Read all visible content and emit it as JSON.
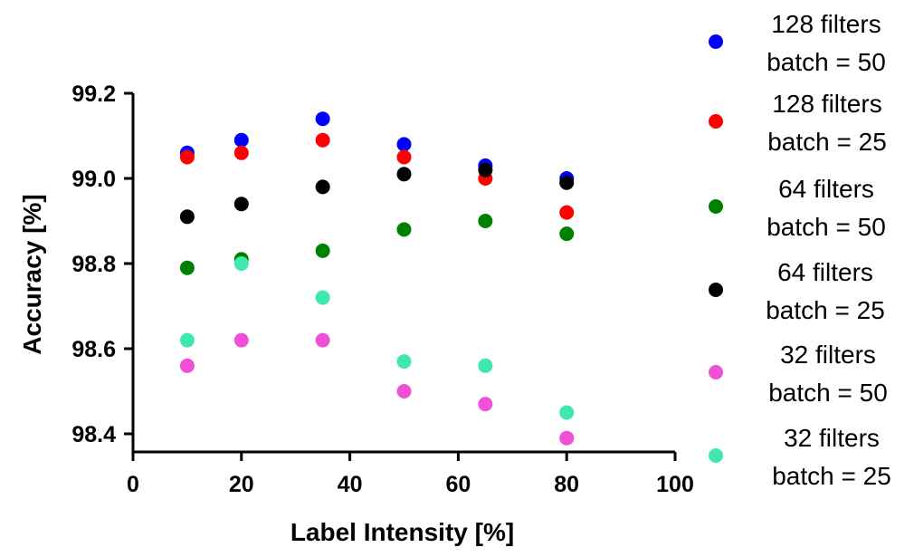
{
  "chart_data": {
    "type": "scatter",
    "title": "",
    "xlabel": "Label Intensity [%]",
    "ylabel": "Accuracy [%]",
    "xlim": [
      0,
      100
    ],
    "ylim": [
      98.35,
      99.2
    ],
    "xticks": [
      0,
      20,
      40,
      60,
      80,
      100
    ],
    "xtick_labels": [
      "0",
      "20",
      "40",
      "60",
      "80",
      "100"
    ],
    "yticks": [
      98.4,
      98.6,
      98.8,
      99.0,
      99.2
    ],
    "ytick_labels": [
      "98.4",
      "98.6",
      "98.8",
      "99.0",
      "99.2"
    ],
    "grid": false,
    "legend_position": "right",
    "x": [
      10,
      20,
      35,
      50,
      65,
      80
    ],
    "series": [
      {
        "name": "128 filters batch = 50",
        "legend_lines": [
          "128 filters",
          "batch = 50"
        ],
        "color": "#0000ff",
        "values": [
          99.06,
          99.09,
          99.14,
          99.08,
          99.03,
          99.0
        ]
      },
      {
        "name": "128 filters batch = 25",
        "legend_lines": [
          "128 filters",
          "batch = 25"
        ],
        "color": "#ff0000",
        "values": [
          99.05,
          99.06,
          99.09,
          99.05,
          99.0,
          98.92
        ]
      },
      {
        "name": "64 filters batch = 50",
        "legend_lines": [
          "64 filters",
          "batch = 50"
        ],
        "color": "#008000",
        "values": [
          98.79,
          98.81,
          98.83,
          98.88,
          98.9,
          98.87
        ]
      },
      {
        "name": "64 filters batch = 25",
        "legend_lines": [
          "64 filters",
          "batch = 25"
        ],
        "color": "#000000",
        "values": [
          98.91,
          98.94,
          98.98,
          99.01,
          99.02,
          98.99
        ]
      },
      {
        "name": "32 filters batch = 50",
        "legend_lines": [
          "32 filters",
          "batch = 50"
        ],
        "color": "#f050d8",
        "values": [
          98.56,
          98.62,
          98.62,
          98.5,
          98.47,
          98.39
        ]
      },
      {
        "name": "32 filters batch = 25",
        "legend_lines": [
          "32 filters",
          "batch = 25"
        ],
        "color": "#40e8b0",
        "values": [
          98.62,
          98.8,
          98.72,
          98.57,
          98.56,
          98.45
        ]
      }
    ]
  }
}
